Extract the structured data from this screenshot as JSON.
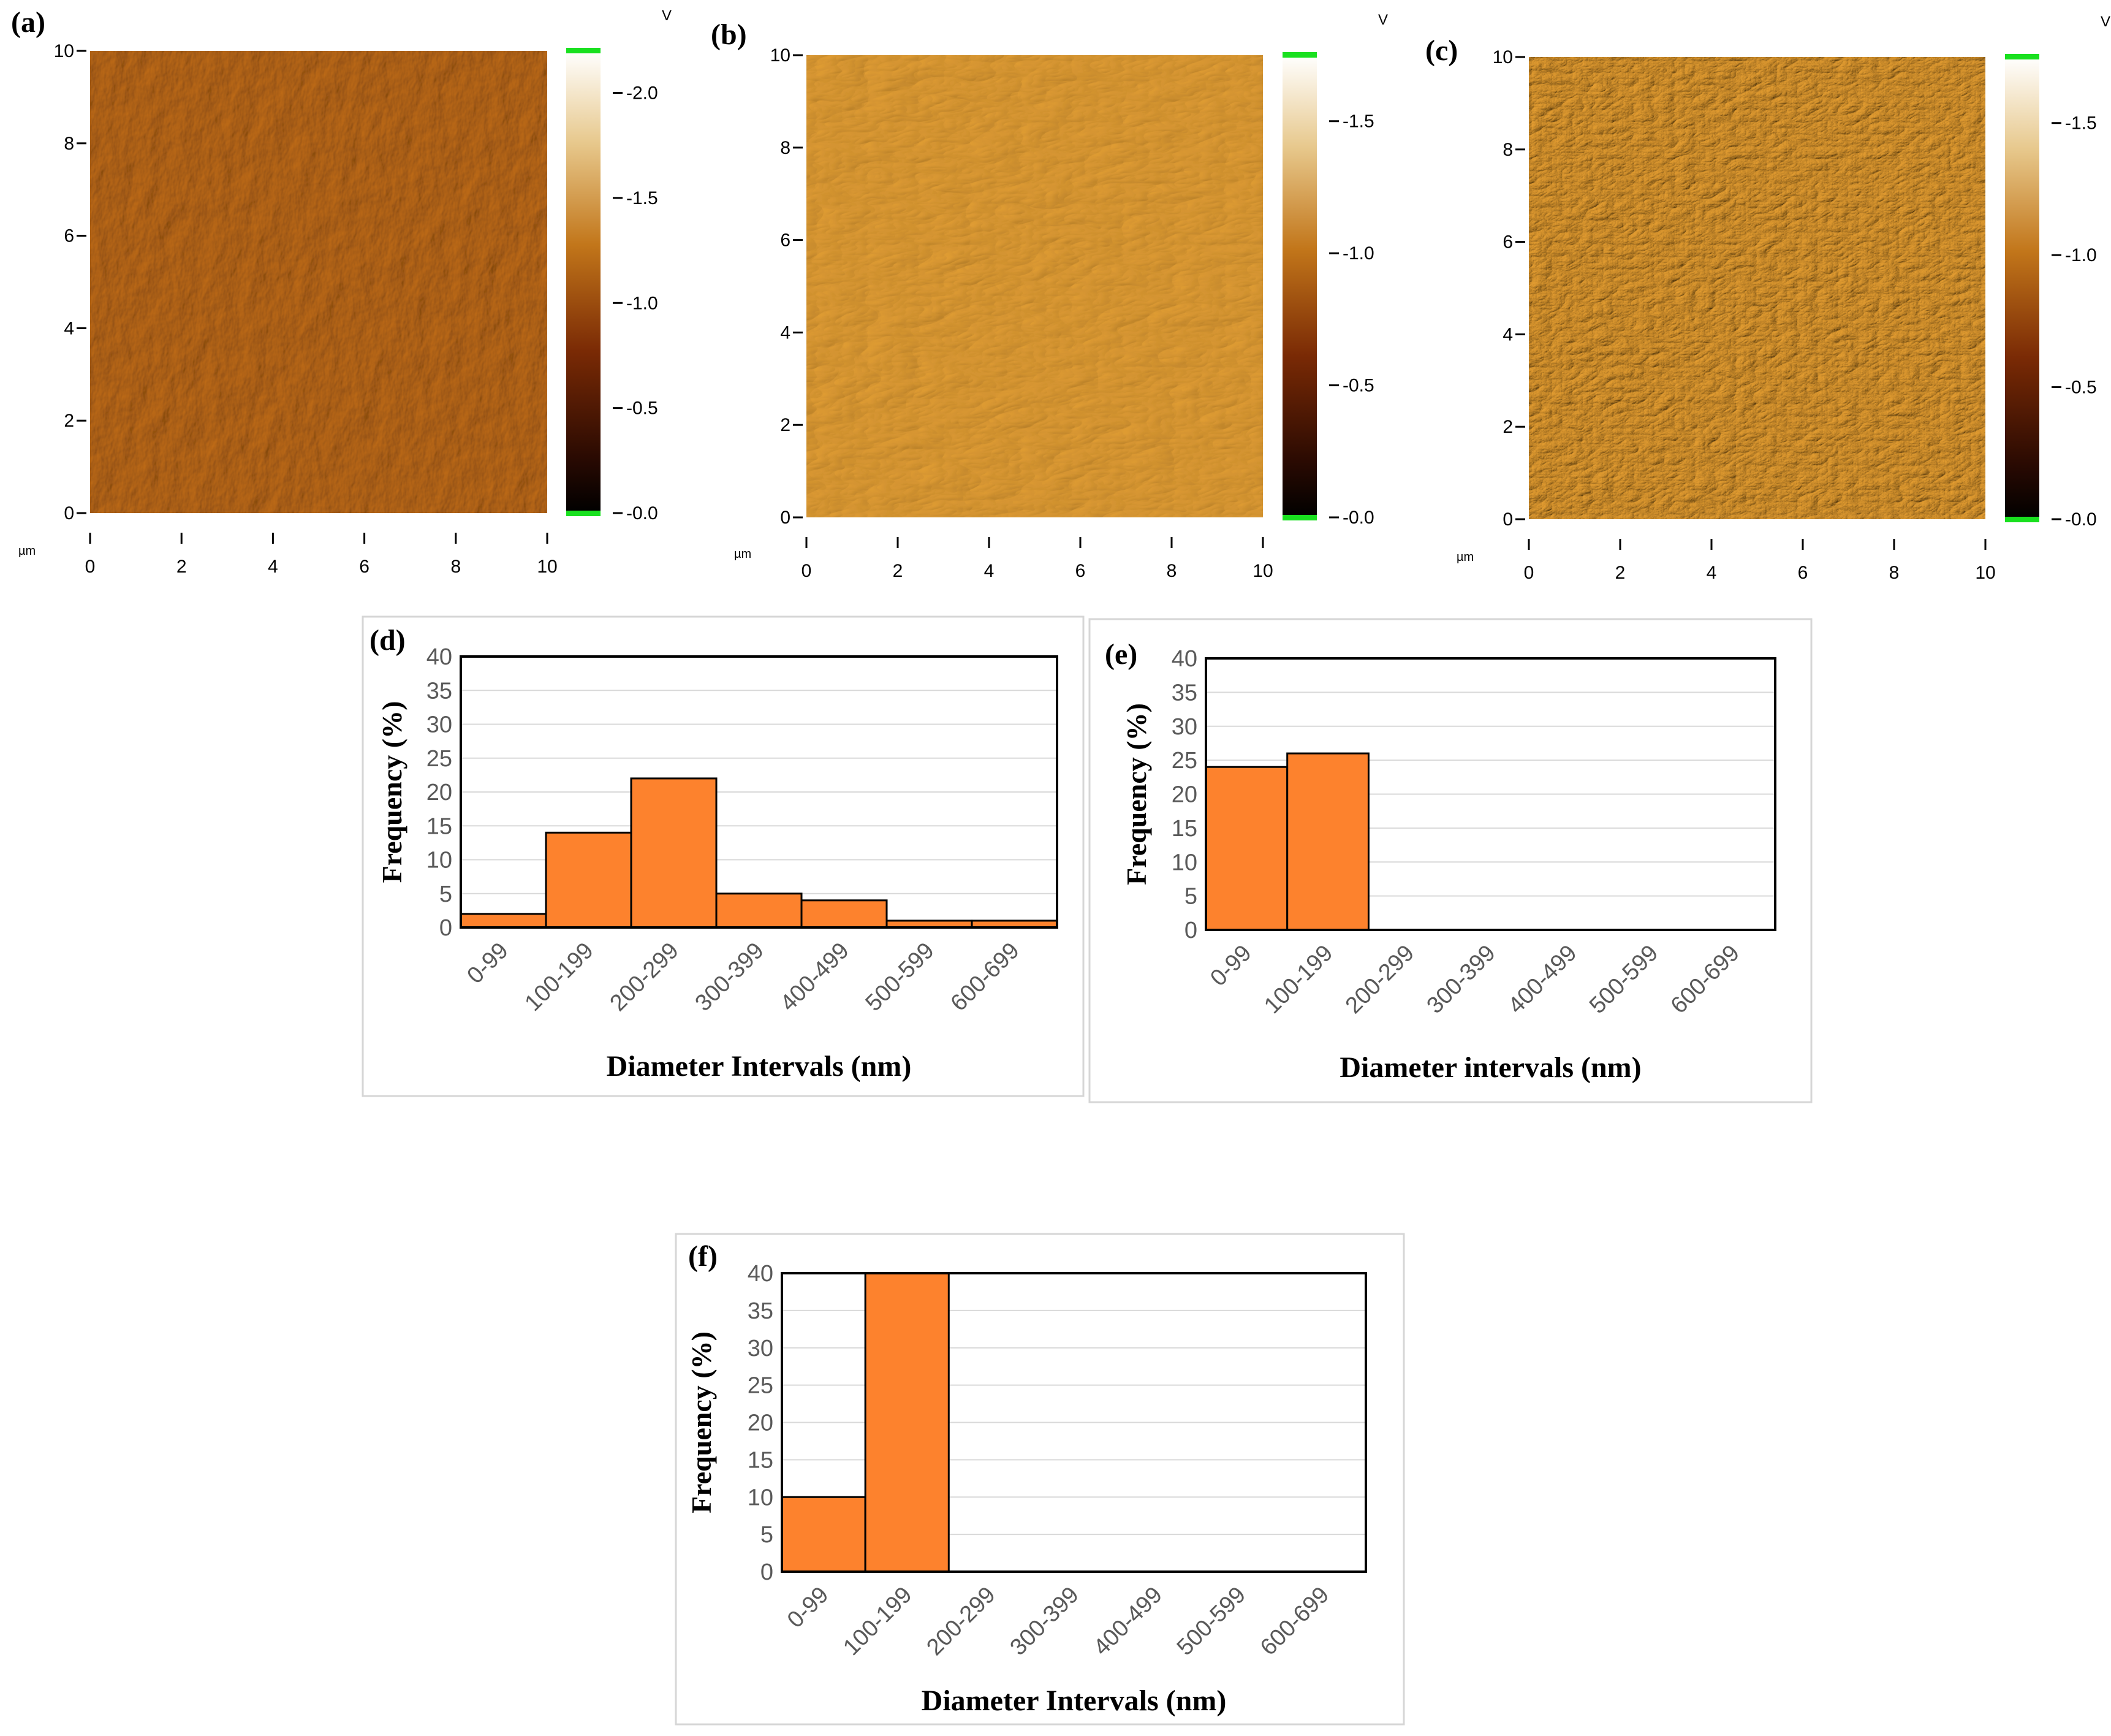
{
  "afm_panels": [
    {
      "label": "(a)",
      "unit": "µm",
      "x_ticks": [
        "0",
        "2",
        "4",
        "6",
        "8",
        "10"
      ],
      "y_ticks": [
        "0",
        "2",
        "4",
        "6",
        "8",
        "10"
      ],
      "colorbar_unit": "V",
      "colorbar_ticks": [
        "-2.0",
        "-1.5",
        "-1.0",
        "-0.5",
        "-0.0"
      ],
      "colorbar_values": [
        2.0,
        1.5,
        1.0,
        0.5,
        0.0
      ],
      "colorbar_max": 2.2,
      "image_tint": "#b36417",
      "image_texture": "fine"
    },
    {
      "label": "(b)",
      "unit": "µm",
      "x_ticks": [
        "0",
        "2",
        "4",
        "6",
        "8",
        "10"
      ],
      "y_ticks": [
        "0",
        "2",
        "4",
        "6",
        "8",
        "10"
      ],
      "colorbar_unit": "V",
      "colorbar_ticks": [
        "-1.5",
        "-1.0",
        "-0.5",
        "-0.0"
      ],
      "colorbar_values": [
        1.5,
        1.0,
        0.5,
        0.0
      ],
      "colorbar_max": 1.75,
      "image_tint": "#d39330",
      "image_texture": "fibers"
    },
    {
      "label": "(c)",
      "unit": "µm",
      "x_ticks": [
        "0",
        "2",
        "4",
        "6",
        "8",
        "10"
      ],
      "y_ticks": [
        "0",
        "2",
        "4",
        "6",
        "8",
        "10"
      ],
      "colorbar_unit": "V",
      "colorbar_ticks": [
        "-1.5",
        "-1.0",
        "-0.5",
        "-0.0"
      ],
      "colorbar_values": [
        1.5,
        1.0,
        0.5,
        0.0
      ],
      "colorbar_max": 1.75,
      "image_tint": "#c98a2a",
      "image_texture": "dense"
    }
  ],
  "chart_data": [
    {
      "label": "(d)",
      "type": "bar",
      "categories": [
        "0-99",
        "100-199",
        "200-299",
        "300-399",
        "400-499",
        "500-599",
        "600-699"
      ],
      "values": [
        2,
        14,
        22,
        5,
        4,
        1,
        1
      ],
      "ylim": [
        0,
        40
      ],
      "yticks": [
        "0",
        "5",
        "10",
        "15",
        "20",
        "25",
        "30",
        "35",
        "40"
      ],
      "ylabel": "Frequency (%)",
      "xlabel": "Diameter Intervals (nm)",
      "bar_color": "#fd822d",
      "grid": true
    },
    {
      "label": "(e)",
      "type": "bar",
      "categories": [
        "0-99",
        "100-199",
        "200-299",
        "300-399",
        "400-499",
        "500-599",
        "600-699"
      ],
      "values": [
        24,
        26,
        0,
        0,
        0,
        0,
        0
      ],
      "ylim": [
        0,
        40
      ],
      "yticks": [
        "0",
        "5",
        "10",
        "15",
        "20",
        "25",
        "30",
        "35",
        "40"
      ],
      "ylabel": "Frequency (%)",
      "xlabel": "Diameter intervals (nm)",
      "bar_color": "#fd822d",
      "grid": true
    },
    {
      "label": "(f)",
      "type": "bar",
      "categories": [
        "0-99",
        "100-199",
        "200-299",
        "300-399",
        "400-499",
        "500-599",
        "600-699"
      ],
      "values": [
        10,
        40,
        0,
        0,
        0,
        0,
        0
      ],
      "ylim": [
        0,
        40
      ],
      "yticks": [
        "0",
        "5",
        "10",
        "15",
        "20",
        "25",
        "30",
        "35",
        "40"
      ],
      "ylabel": "Frequency (%)",
      "xlabel": "Diameter Intervals (nm)",
      "bar_color": "#fd822d",
      "grid": true
    }
  ]
}
